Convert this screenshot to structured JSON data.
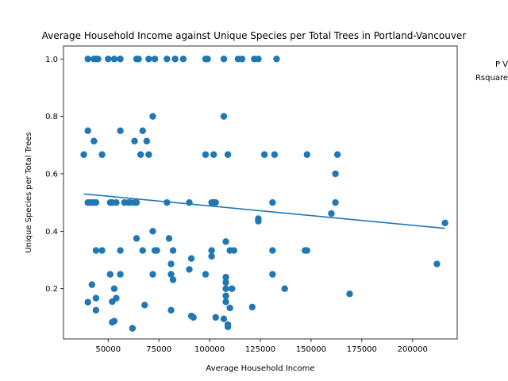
{
  "chart_data": {
    "type": "scatter",
    "title": "Average Household Income against Unique Species per Total Trees in Portland-Vancouver",
    "xlabel": "Average Household Income",
    "ylabel": "Unique Species per Total Trees",
    "xlim": [
      28000,
      222000
    ],
    "ylim": [
      0.025,
      1.045
    ],
    "x_ticks": [
      50000,
      75000,
      100000,
      125000,
      150000,
      175000,
      200000
    ],
    "x_tick_labels": [
      "50000",
      "75000",
      "100000",
      "125000",
      "150000",
      "175000",
      "200000"
    ],
    "y_ticks": [
      0.2,
      0.4,
      0.6,
      0.8,
      1.0
    ],
    "y_tick_labels": [
      "0.2",
      "0.4",
      "0.6",
      "0.8",
      "1.0"
    ],
    "grid": false,
    "point_color": "#1f77b4",
    "line_color": "#1f77b4",
    "annotation_lines": [
      "P V",
      "Rsquare"
    ],
    "regression": {
      "x": [
        38000,
        216000
      ],
      "y": [
        0.53,
        0.41
      ]
    },
    "points": [
      [
        38000,
        0.667
      ],
      [
        40000,
        0.5
      ],
      [
        40000,
        0.75
      ],
      [
        40000,
        1.0
      ],
      [
        40000,
        0.153
      ],
      [
        41000,
        0.5
      ],
      [
        42000,
        0.5
      ],
      [
        42000,
        0.214
      ],
      [
        43000,
        1.0
      ],
      [
        43000,
        0.714
      ],
      [
        43000,
        0.5
      ],
      [
        44000,
        0.125
      ],
      [
        44000,
        1.0
      ],
      [
        44000,
        0.333
      ],
      [
        44000,
        0.5
      ],
      [
        44000,
        0.167
      ],
      [
        45000,
        1.0
      ],
      [
        47000,
        0.667
      ],
      [
        47000,
        0.333
      ],
      [
        50000,
        1.0
      ],
      [
        51000,
        0.5
      ],
      [
        51000,
        0.25
      ],
      [
        52000,
        0.5
      ],
      [
        52000,
        0.083
      ],
      [
        52000,
        0.155
      ],
      [
        53000,
        1.0
      ],
      [
        53000,
        0.2
      ],
      [
        53000,
        0.087
      ],
      [
        54000,
        0.5
      ],
      [
        54000,
        0.167
      ],
      [
        56000,
        1.0
      ],
      [
        56000,
        0.75
      ],
      [
        56000,
        0.333
      ],
      [
        56000,
        0.25
      ],
      [
        58000,
        0.5
      ],
      [
        60000,
        0.5
      ],
      [
        61000,
        0.5
      ],
      [
        62000,
        0.062
      ],
      [
        63000,
        0.5
      ],
      [
        63000,
        0.714
      ],
      [
        64000,
        1.0
      ],
      [
        64000,
        0.5
      ],
      [
        64000,
        0.375
      ],
      [
        65000,
        1.0
      ],
      [
        66000,
        0.667
      ],
      [
        67000,
        0.75
      ],
      [
        67000,
        0.333
      ],
      [
        68000,
        0.143
      ],
      [
        69000,
        0.714
      ],
      [
        70000,
        1.0
      ],
      [
        70000,
        0.667
      ],
      [
        72000,
        0.8
      ],
      [
        72000,
        0.4
      ],
      [
        72000,
        0.25
      ],
      [
        73000,
        1.0
      ],
      [
        73000,
        0.333
      ],
      [
        74000,
        0.333
      ],
      [
        79000,
        1.0
      ],
      [
        79000,
        0.5
      ],
      [
        80000,
        0.375
      ],
      [
        81000,
        0.286
      ],
      [
        81000,
        0.25
      ],
      [
        81000,
        0.125
      ],
      [
        82000,
        0.333
      ],
      [
        82000,
        0.231
      ],
      [
        83000,
        1.0
      ],
      [
        87000,
        1.0
      ],
      [
        90000,
        0.5
      ],
      [
        90000,
        0.267
      ],
      [
        91000,
        0.305
      ],
      [
        91000,
        0.105
      ],
      [
        92000,
        0.1
      ],
      [
        98000,
        1.0
      ],
      [
        98000,
        0.667
      ],
      [
        98000,
        0.25
      ],
      [
        99000,
        1.0
      ],
      [
        101000,
        0.5
      ],
      [
        101000,
        0.333
      ],
      [
        101000,
        0.313
      ],
      [
        102000,
        0.667
      ],
      [
        102000,
        0.5
      ],
      [
        103000,
        0.1
      ],
      [
        103000,
        0.5
      ],
      [
        107000,
        1.0
      ],
      [
        107000,
        0.8
      ],
      [
        107000,
        0.095
      ],
      [
        108000,
        0.364
      ],
      [
        108000,
        0.24
      ],
      [
        108000,
        0.222
      ],
      [
        108000,
        0.2
      ],
      [
        108000,
        0.175
      ],
      [
        108000,
        0.154
      ],
      [
        109000,
        0.667
      ],
      [
        109000,
        0.075
      ],
      [
        109000,
        0.067
      ],
      [
        110000,
        0.333
      ],
      [
        110000,
        0.133
      ],
      [
        111000,
        0.2
      ],
      [
        112000,
        0.333
      ],
      [
        114000,
        1.0
      ],
      [
        116000,
        1.0
      ],
      [
        121000,
        0.136
      ],
      [
        122000,
        1.0
      ],
      [
        124000,
        1.0
      ],
      [
        124000,
        0.444
      ],
      [
        124000,
        0.435
      ],
      [
        127000,
        0.667
      ],
      [
        131000,
        0.5
      ],
      [
        131000,
        0.333
      ],
      [
        131000,
        0.25
      ],
      [
        132000,
        0.667
      ],
      [
        133000,
        1.0
      ],
      [
        137000,
        0.2
      ],
      [
        147000,
        0.333
      ],
      [
        148000,
        0.667
      ],
      [
        148000,
        0.333
      ],
      [
        160000,
        0.462
      ],
      [
        162000,
        0.6
      ],
      [
        162000,
        0.5
      ],
      [
        163000,
        0.667
      ],
      [
        169000,
        0.182
      ],
      [
        212000,
        0.286
      ],
      [
        216000,
        0.429
      ]
    ]
  }
}
